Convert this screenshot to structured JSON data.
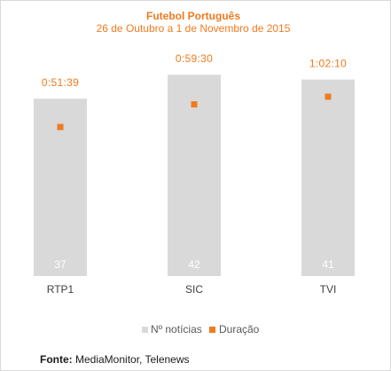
{
  "chart_data": {
    "type": "bar",
    "title": "Futebol Português",
    "subtitle": "26 de Outubro a 1 de Novembro de 2015",
    "categories": [
      "RTP1",
      "SIC",
      "TVI"
    ],
    "series": [
      {
        "name": "Nº notícias",
        "type": "bar",
        "values": [
          37,
          42,
          41
        ],
        "color": "#d9d9d9"
      },
      {
        "name": "Duração",
        "type": "scatter",
        "values": [
          "0:51:39",
          "0:59:30",
          "1:02:10"
        ],
        "values_seconds": [
          3099,
          3570,
          3730
        ],
        "color": "#f07a1e"
      }
    ],
    "bar_ylim": [
      0,
      50
    ],
    "duration_ylim_seconds": [
      0,
      4800
    ],
    "grid": false,
    "legend_position": "bottom"
  },
  "source": {
    "label": "Fonte:",
    "text": "MediaMonitor, Telenews"
  }
}
